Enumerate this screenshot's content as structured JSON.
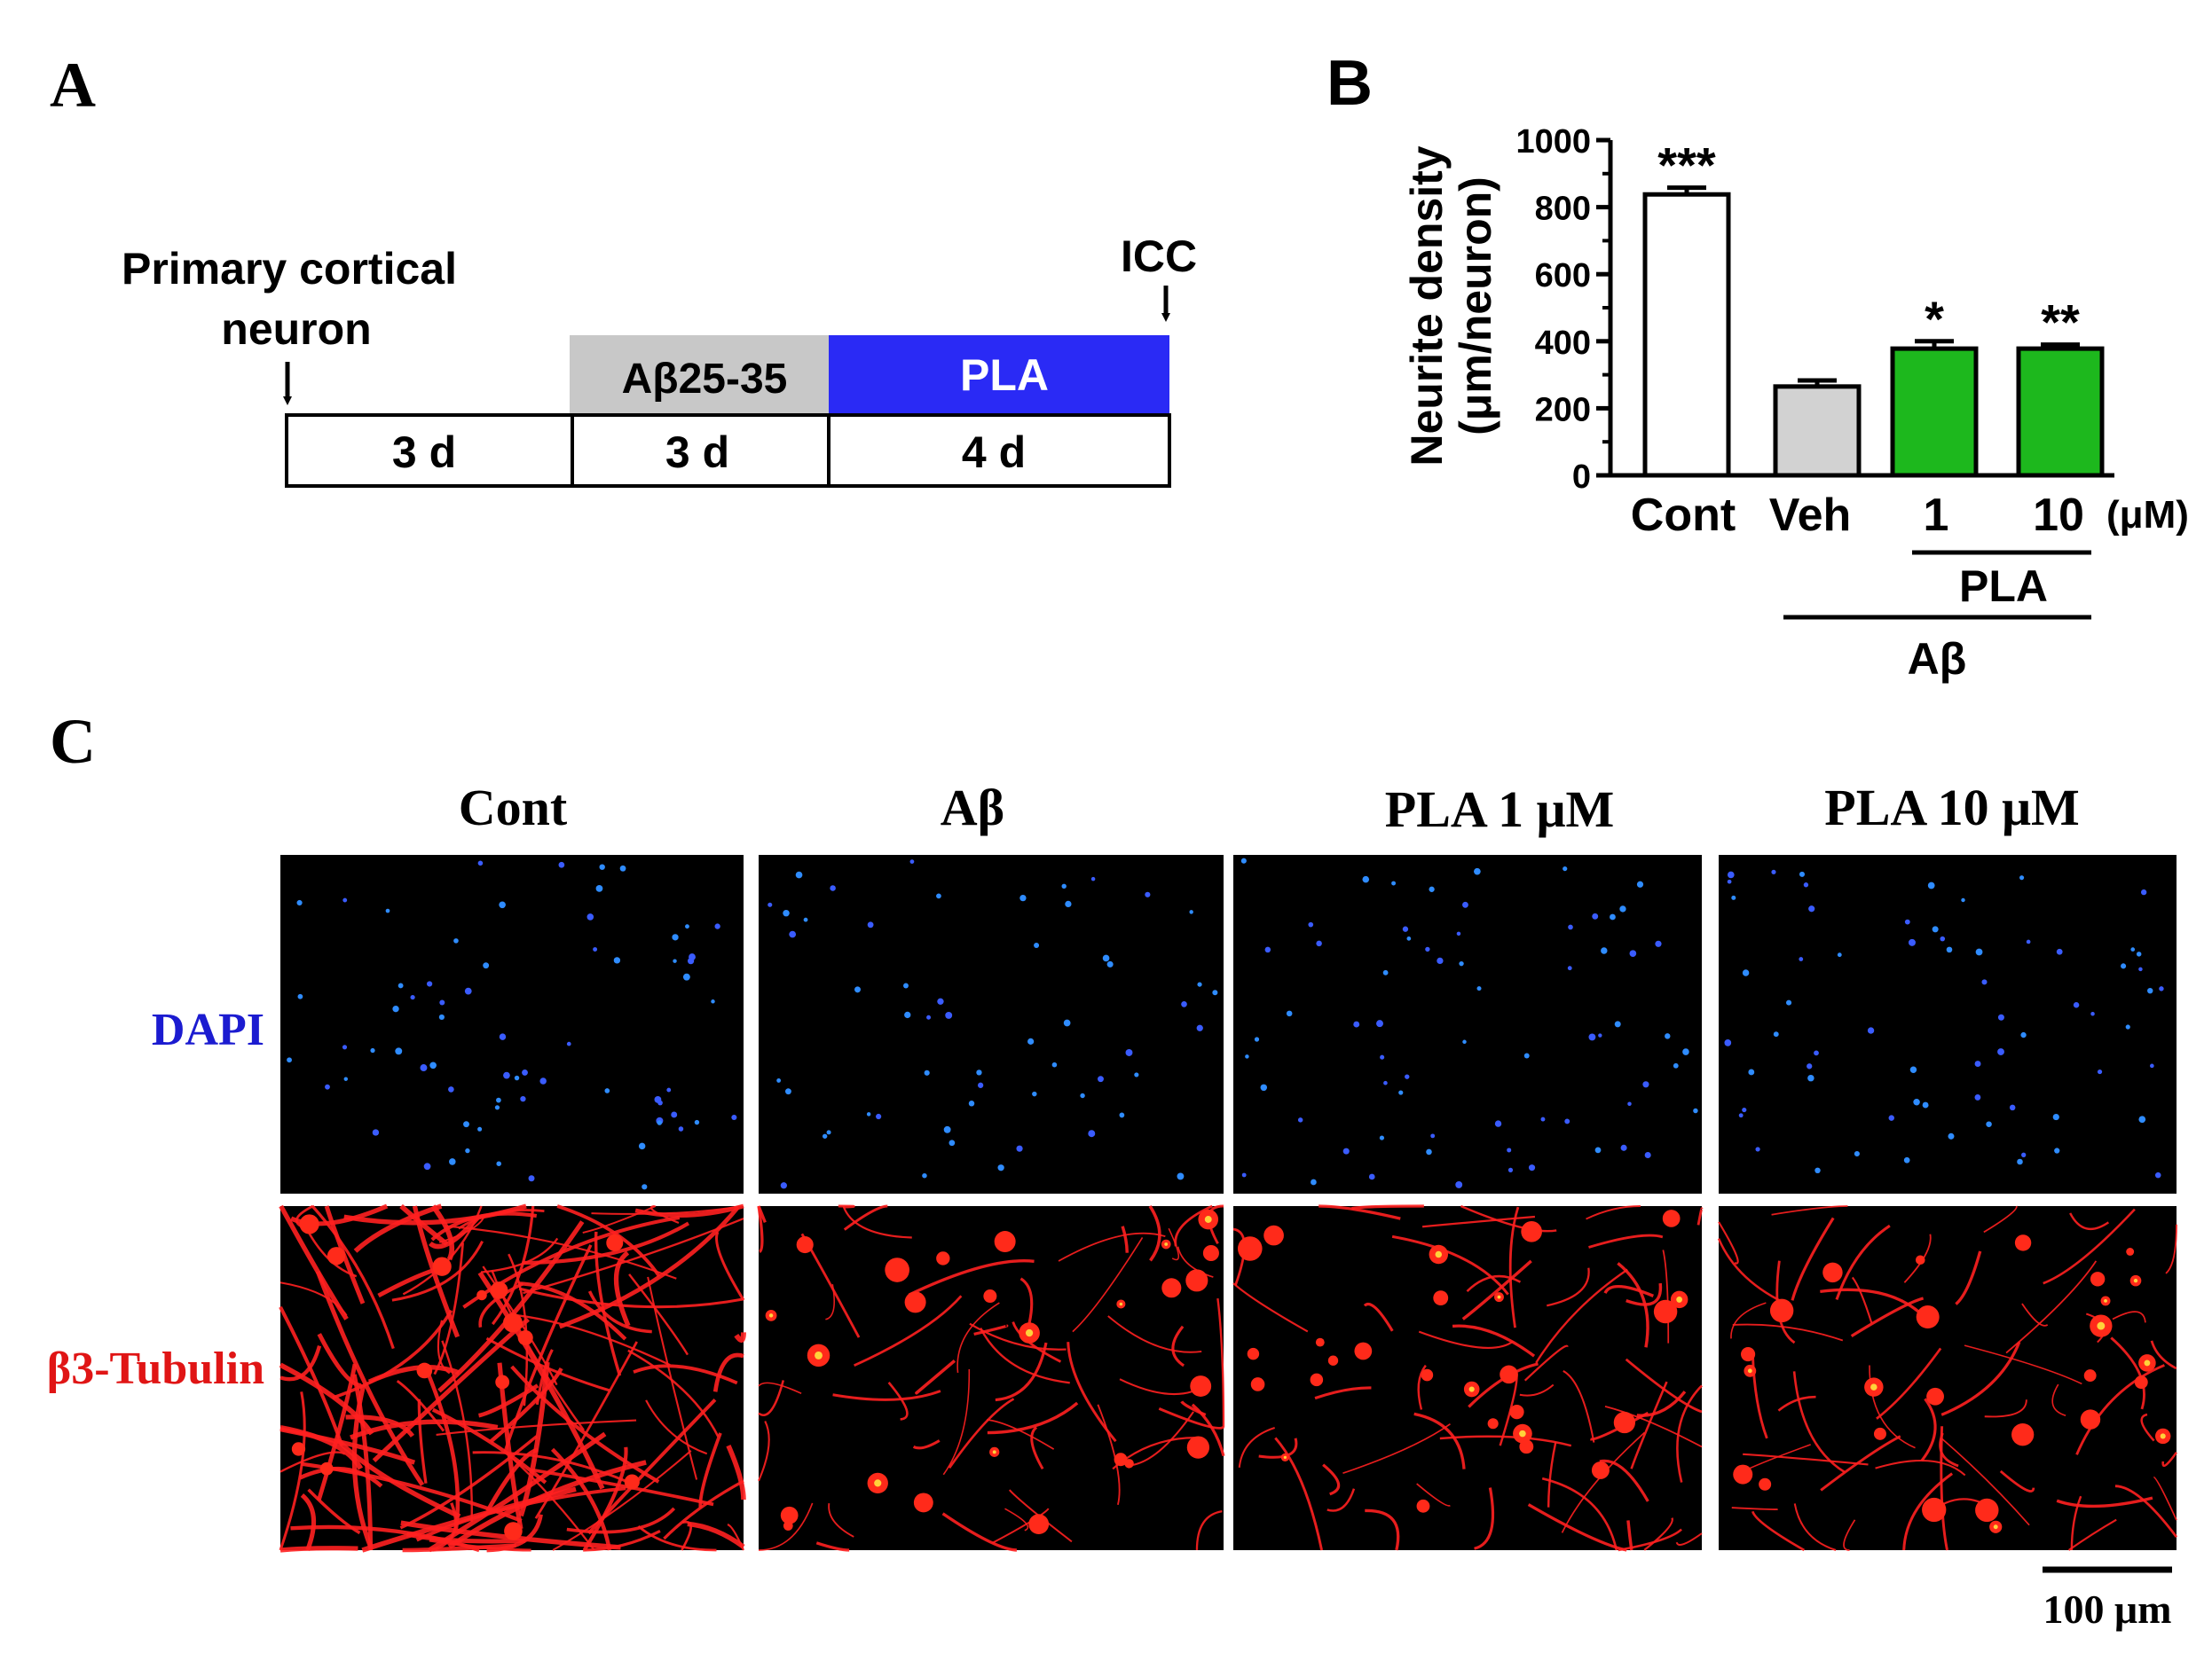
{
  "panel_a": {
    "letter": "A",
    "start_label_line1": "Primary cortical",
    "start_label_line2": "neuron",
    "icc_label": "ICC",
    "abeta_box": "Aβ25-35",
    "pla_box": "PLA",
    "durations": [
      "3 d",
      "3 d",
      "4 d"
    ],
    "colors": {
      "abeta": "#c8c8c8",
      "pla": "#2a2af5"
    }
  },
  "panel_b": {
    "letter": "B",
    "bar_colors": [
      "#ffffff",
      "#d2d2d2",
      "#1db81d",
      "#1db81d"
    ],
    "unit_label": "(μM)",
    "group_pla": "PLA",
    "group_abeta": "Aβ"
  },
  "chart_data": {
    "type": "bar",
    "categories": [
      "Cont",
      "Veh",
      "1",
      "10"
    ],
    "values": [
      838,
      265,
      378,
      378
    ],
    "errors": [
      20,
      18,
      22,
      12
    ],
    "significance": [
      "***",
      "",
      "*",
      "**"
    ],
    "ylabel_line1": "Neurite density",
    "ylabel_line2": "(μm/neuron)",
    "ylim": [
      0,
      1000
    ],
    "yticks": [
      0,
      200,
      400,
      600,
      800,
      1000
    ],
    "grid": false
  },
  "panel_c": {
    "letter": "C",
    "columns": [
      "Cont",
      "Aβ",
      "PLA 1 μM",
      "PLA 10 μM"
    ],
    "rows": [
      "DAPI",
      "β3-Tubulin"
    ],
    "row_colors": [
      "#1b1bd0",
      "#e01515"
    ],
    "scale_bar": "100 μm"
  }
}
